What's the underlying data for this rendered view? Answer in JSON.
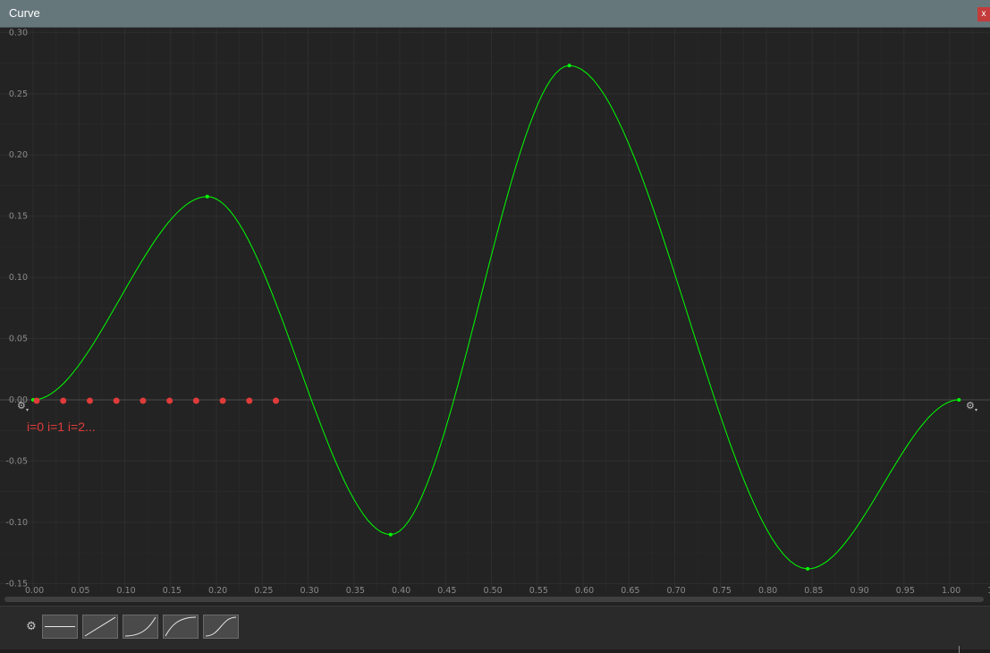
{
  "window": {
    "title": "Curve",
    "close_label": "x"
  },
  "chart_data": {
    "type": "line",
    "xlim": [
      0.0,
      1.05
    ],
    "ylim": [
      -0.15,
      0.3
    ],
    "x_ticks": [
      "0.00",
      "0.05",
      "0.10",
      "0.15",
      "0.20",
      "0.25",
      "0.30",
      "0.35",
      "0.40",
      "0.45",
      "0.50",
      "0.55",
      "0.60",
      "0.65",
      "0.70",
      "0.75",
      "0.80",
      "0.85",
      "0.90",
      "0.95",
      "1.00",
      "1"
    ],
    "y_ticks": [
      "0.30",
      "0.25",
      "0.20",
      "0.15",
      "0.10",
      "0.05",
      "0.00",
      "-0.05",
      "-0.10",
      "-0.15"
    ],
    "grid": true,
    "series": [
      {
        "color": "#00ff00",
        "keyframes": [
          {
            "x": 0.0,
            "y": 0.0
          },
          {
            "x": 0.19,
            "y": 0.166
          },
          {
            "x": 0.39,
            "y": -0.11
          },
          {
            "x": 0.585,
            "y": 0.273
          },
          {
            "x": 0.845,
            "y": -0.138
          },
          {
            "x": 1.01,
            "y": 0.0
          }
        ]
      }
    ],
    "sample_points": {
      "color": "#e03b3b",
      "x": [
        0.0,
        0.029,
        0.058,
        0.087,
        0.116,
        0.145,
        0.174,
        0.203,
        0.232,
        0.261
      ],
      "y": [
        0,
        0,
        0,
        0,
        0,
        0,
        0,
        0,
        0,
        0
      ]
    },
    "annotation": "i=0 i=1 i=2..."
  },
  "toolbar": {
    "gear_icon": "gear-icon",
    "presets": [
      {
        "name": "preset-constant",
        "shape": "flat"
      },
      {
        "name": "preset-linear",
        "shape": "linear"
      },
      {
        "name": "preset-ease-in",
        "shape": "ease-in"
      },
      {
        "name": "preset-ease-out",
        "shape": "ease-out"
      },
      {
        "name": "preset-ease-in-out",
        "shape": "ease-in-out"
      }
    ]
  }
}
